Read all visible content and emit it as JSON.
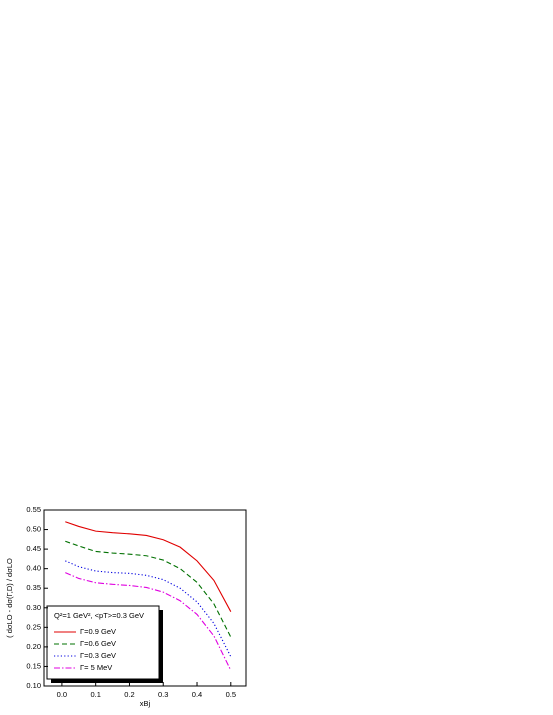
{
  "chart_data": {
    "type": "line",
    "ylabel": "( dσLO - dσ(Γ,D) / dσLO",
    "xlabel": "xBj",
    "legend_title": "Q²=1 GeV², <pT>=0.3 GeV",
    "legend": "lower left",
    "x": [
      0.01,
      0.05,
      0.1,
      0.15,
      0.2,
      0.25,
      0.3,
      0.35,
      0.4,
      0.45,
      0.5
    ],
    "series": [
      {
        "name": "Γ=0.9 GeV",
        "color": "#e00000",
        "dash": "solid",
        "values": [
          0.52,
          0.508,
          0.496,
          0.492,
          0.489,
          0.485,
          0.474,
          0.455,
          0.42,
          0.37,
          0.29
        ]
      },
      {
        "name": "Γ=0.6 GeV",
        "color": "#007000",
        "dash": "dashed",
        "values": [
          0.47,
          0.458,
          0.444,
          0.44,
          0.437,
          0.433,
          0.422,
          0.4,
          0.365,
          0.31,
          0.225
        ]
      },
      {
        "name": "Γ=0.3 GeV",
        "color": "#0000e0",
        "dash": "dotted",
        "values": [
          0.42,
          0.405,
          0.394,
          0.39,
          0.388,
          0.383,
          0.372,
          0.35,
          0.315,
          0.26,
          0.175
        ]
      },
      {
        "name": "Γ=  5 MeV",
        "color": "#e000e0",
        "dash": "dashdot",
        "values": [
          0.39,
          0.375,
          0.364,
          0.36,
          0.357,
          0.352,
          0.34,
          0.318,
          0.283,
          0.228,
          0.14
        ]
      }
    ],
    "xlim": [
      -0.053,
      0.545
    ],
    "ylim": [
      0.1,
      0.55
    ],
    "xticks": [
      {
        "value": 0,
        "label": "0.0"
      },
      {
        "value": 0.1,
        "label": "0.1"
      },
      {
        "value": 0.2,
        "label": "0.2"
      },
      {
        "value": 0.3,
        "label": "0.3"
      },
      {
        "value": 0.4,
        "label": "0.4"
      },
      {
        "value": 0.5,
        "label": "0.5"
      }
    ],
    "yticks": [
      {
        "value": 0.1,
        "label": "0.10"
      },
      {
        "value": 0.15,
        "label": "0.15"
      },
      {
        "value": 0.2,
        "label": "0.20"
      },
      {
        "value": 0.25,
        "label": "0.25"
      },
      {
        "value": 0.3,
        "label": "0.30"
      },
      {
        "value": 0.35,
        "label": "0.35"
      },
      {
        "value": 0.4,
        "label": "0.40"
      },
      {
        "value": 0.45,
        "label": "0.45"
      },
      {
        "value": 0.5,
        "label": "0.50"
      },
      {
        "value": 0.55,
        "label": "0.55"
      }
    ]
  }
}
